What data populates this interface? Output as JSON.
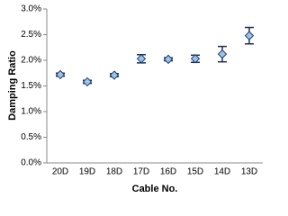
{
  "chart_data": {
    "type": "errorbar",
    "x_label": "Cable No.",
    "y_label": "Damping Ratio",
    "categories": [
      "20D",
      "19D",
      "18D",
      "17D",
      "16D",
      "15D",
      "14D",
      "13D"
    ],
    "values": [
      1.72,
      1.58,
      1.71,
      2.03,
      2.02,
      2.03,
      2.12,
      2.48
    ],
    "errors": [
      0.03,
      0.03,
      0.03,
      0.08,
      0.03,
      0.07,
      0.15,
      0.16
    ],
    "color": "#9dc3e6",
    "edge_color": "#1f3f6e",
    "error_color": "#1f2f5a",
    "ylim": [
      0,
      3
    ],
    "yticks": [
      {
        "value": 0,
        "label": "0.0%"
      },
      {
        "value": 0.5,
        "label": "0.5%"
      },
      {
        "value": 1,
        "label": "1.0%"
      },
      {
        "value": 1.5,
        "label": "1.5%"
      },
      {
        "value": 2,
        "label": "2.0%"
      },
      {
        "value": 2.5,
        "label": "2.5%"
      },
      {
        "value": 3,
        "label": "3.0%"
      }
    ],
    "grid": false
  }
}
